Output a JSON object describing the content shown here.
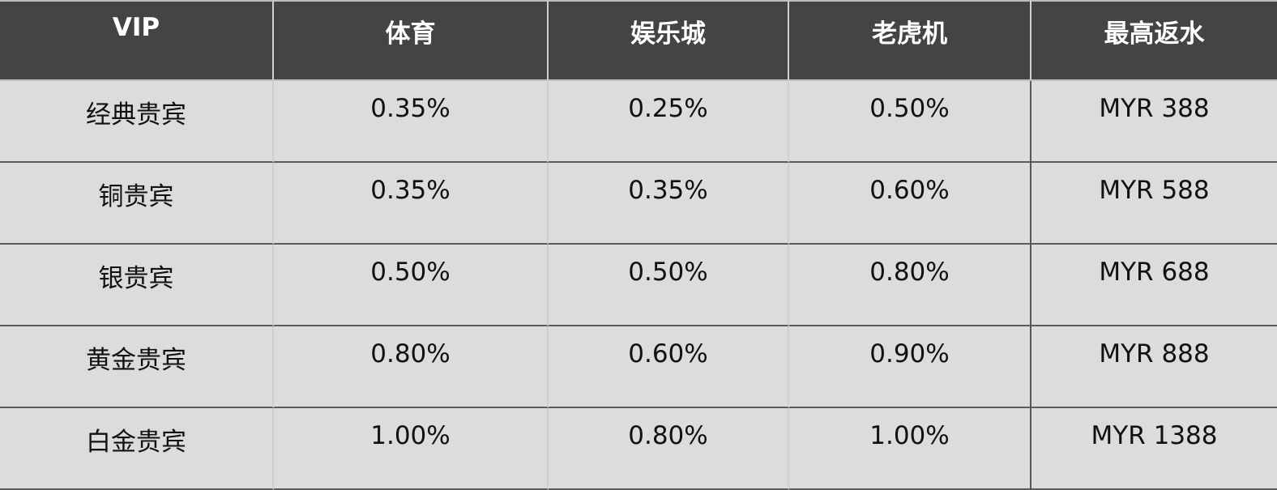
{
  "headers": [
    "VIP",
    "体育",
    "娱乐城",
    "老虎机",
    "最高返水"
  ],
  "rows": [
    [
      "经典贵宾",
      "0.35%",
      "0.25%",
      "0.50%",
      "MYR 388"
    ],
    [
      "铜贵宾",
      "0.35%",
      "0.35%",
      "0.60%",
      "MYR 588"
    ],
    [
      "银贵宾",
      "0.50%",
      "0.50%",
      "0.80%",
      "MYR 688"
    ],
    [
      "黄金贵宾",
      "0.80%",
      "0.60%",
      "0.90%",
      "MYR 888"
    ],
    [
      "白金贵宾",
      "1.00%",
      "0.80%",
      "1.00%",
      "MYR 1388"
    ]
  ],
  "colors": {
    "header_bg": "#444444",
    "cell_bg": "#dcdcdc"
  }
}
